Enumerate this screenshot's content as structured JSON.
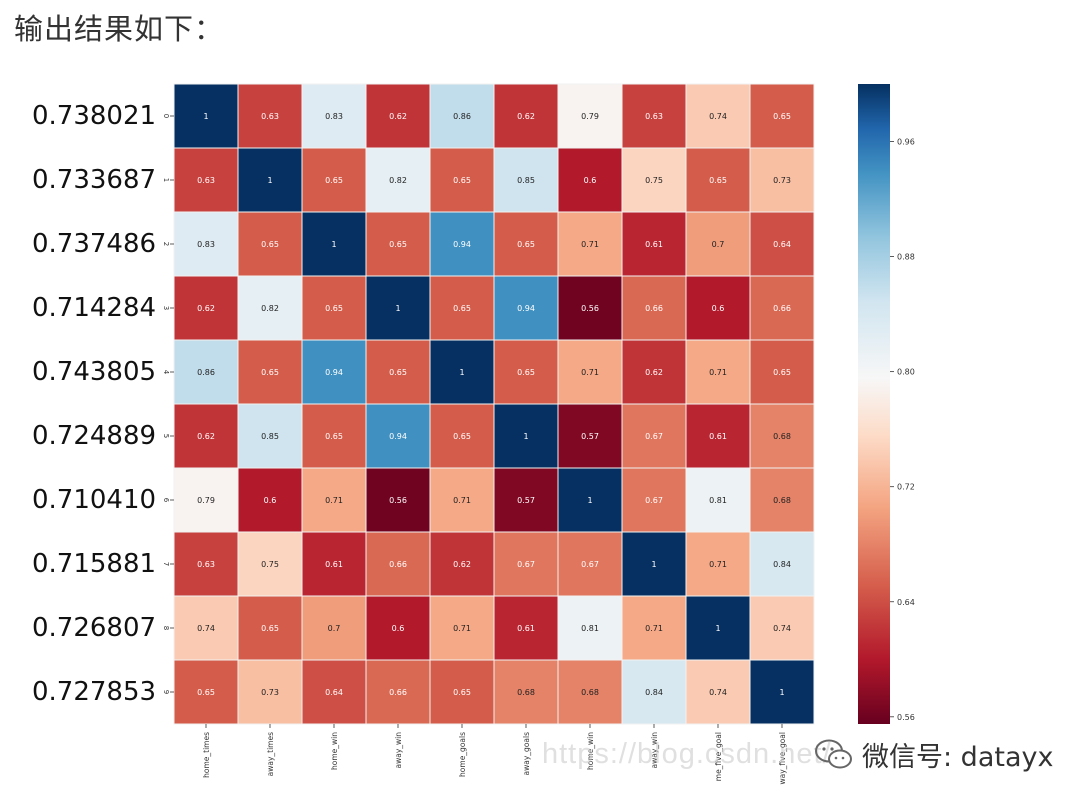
{
  "caption": "输出结果如下：",
  "scores": [
    "0.738021",
    "0.733687",
    "0.737486",
    "0.714284",
    "0.743805",
    "0.724889",
    "0.710410",
    "0.715881",
    "0.726807",
    "0.727853"
  ],
  "watermark": {
    "url_text": "https://blog.csdn.net/",
    "brand_text": "微信号: datayx"
  },
  "colors": {
    "low": "#67001f",
    "mid": "#f7f7f7",
    "high": "#053061"
  },
  "chart_data": {
    "type": "heatmap",
    "title": "",
    "colormap": "RdBu",
    "row_labels": [
      "0",
      "1",
      "2",
      "3",
      "4",
      "5",
      "6",
      "7",
      "8",
      "9"
    ],
    "column_labels": [
      "home_times",
      "away_times",
      "home_win",
      "away_win",
      "home_goals",
      "away_goals",
      "home_win",
      "away_win",
      "me_five_goal",
      "way_five_goal"
    ],
    "values": [
      [
        1,
        0.63,
        0.83,
        0.62,
        0.86,
        0.62,
        0.79,
        0.63,
        0.74,
        0.65
      ],
      [
        0.63,
        1,
        0.65,
        0.82,
        0.65,
        0.85,
        0.6,
        0.75,
        0.65,
        0.73
      ],
      [
        0.83,
        0.65,
        1,
        0.65,
        0.94,
        0.65,
        0.71,
        0.61,
        0.7,
        0.64
      ],
      [
        0.62,
        0.82,
        0.65,
        1,
        0.65,
        0.94,
        0.56,
        0.66,
        0.6,
        0.66
      ],
      [
        0.86,
        0.65,
        0.94,
        0.65,
        1,
        0.65,
        0.71,
        0.62,
        0.71,
        0.65
      ],
      [
        0.62,
        0.85,
        0.65,
        0.94,
        0.65,
        1,
        0.57,
        0.67,
        0.61,
        0.68
      ],
      [
        0.79,
        0.6,
        0.71,
        0.56,
        0.71,
        0.57,
        1,
        0.67,
        0.81,
        0.68
      ],
      [
        0.63,
        0.75,
        0.61,
        0.66,
        0.62,
        0.67,
        0.67,
        1,
        0.71,
        0.84
      ],
      [
        0.74,
        0.65,
        0.7,
        0.6,
        0.71,
        0.61,
        0.81,
        0.71,
        1,
        0.74
      ],
      [
        0.65,
        0.73,
        0.64,
        0.66,
        0.65,
        0.68,
        0.68,
        0.84,
        0.74,
        1
      ]
    ],
    "colorbar": {
      "range": [
        0.555,
        1.0
      ],
      "ticks": [
        0.56,
        0.64,
        0.72,
        0.8,
        0.88,
        0.96
      ],
      "tick_labels": [
        "0.56",
        "0.64",
        "0.72",
        "0.80",
        "0.88",
        "0.96"
      ]
    }
  }
}
